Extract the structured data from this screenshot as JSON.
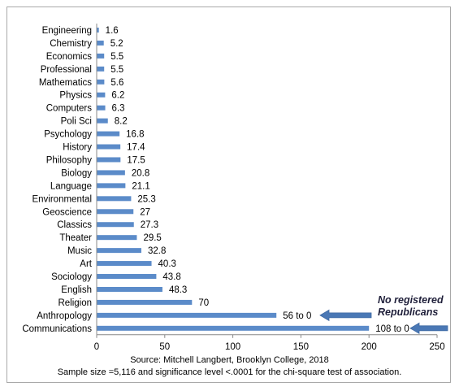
{
  "chart_data": {
    "type": "bar",
    "orientation": "horizontal",
    "categories": [
      "Engineering",
      "Chemistry",
      "Economics",
      "Professional",
      "Mathematics",
      "Physics",
      "Computers",
      "Poli Sci",
      "Psychology",
      "History",
      "Philosophy",
      "Biology",
      "Language",
      "Environmental",
      "Geoscience",
      "Classics",
      "Theater",
      "Music",
      "Art",
      "Sociology",
      "English",
      "Religion",
      "Anthropology",
      "Communications"
    ],
    "values": [
      1.6,
      5.2,
      5.5,
      5.5,
      5.6,
      6.2,
      6.3,
      8.2,
      16.8,
      17.4,
      17.5,
      20.8,
      21.1,
      25.3,
      27,
      27.3,
      29.5,
      32.8,
      40.3,
      43.8,
      48.3,
      70,
      56,
      108
    ],
    "value_labels": [
      "1.6",
      "5.2",
      "5.5",
      "5.5",
      "5.6",
      "6.2",
      "6.3",
      "8.2",
      "16.8",
      "17.4",
      "17.5",
      "20.8",
      "21.1",
      "25.3",
      "27",
      "27.3",
      "29.5",
      "32.8",
      "40.3",
      "43.8",
      "48.3",
      "70",
      "56 to 0",
      "108 to 0"
    ],
    "bar_display_values": [
      1.6,
      5.2,
      5.5,
      5.5,
      5.6,
      6.2,
      6.3,
      8.2,
      16.8,
      17.4,
      17.5,
      20.8,
      21.1,
      25.3,
      27,
      27.3,
      29.5,
      32.8,
      40.3,
      43.8,
      48.3,
      70,
      132,
      200
    ],
    "xlim": [
      0,
      250
    ],
    "xticks": [
      0,
      50,
      100,
      150,
      200,
      250
    ],
    "bar_color": "#5b8bc9",
    "source": "Source: Mitchell Langbert, Brooklyn College, 2018",
    "note": "Sample size =5,116 and significance level <.0001 for the chi-square test of association.",
    "annotation": [
      "No registered",
      "Republicans"
    ],
    "arrow_color": "#4a78b5"
  }
}
